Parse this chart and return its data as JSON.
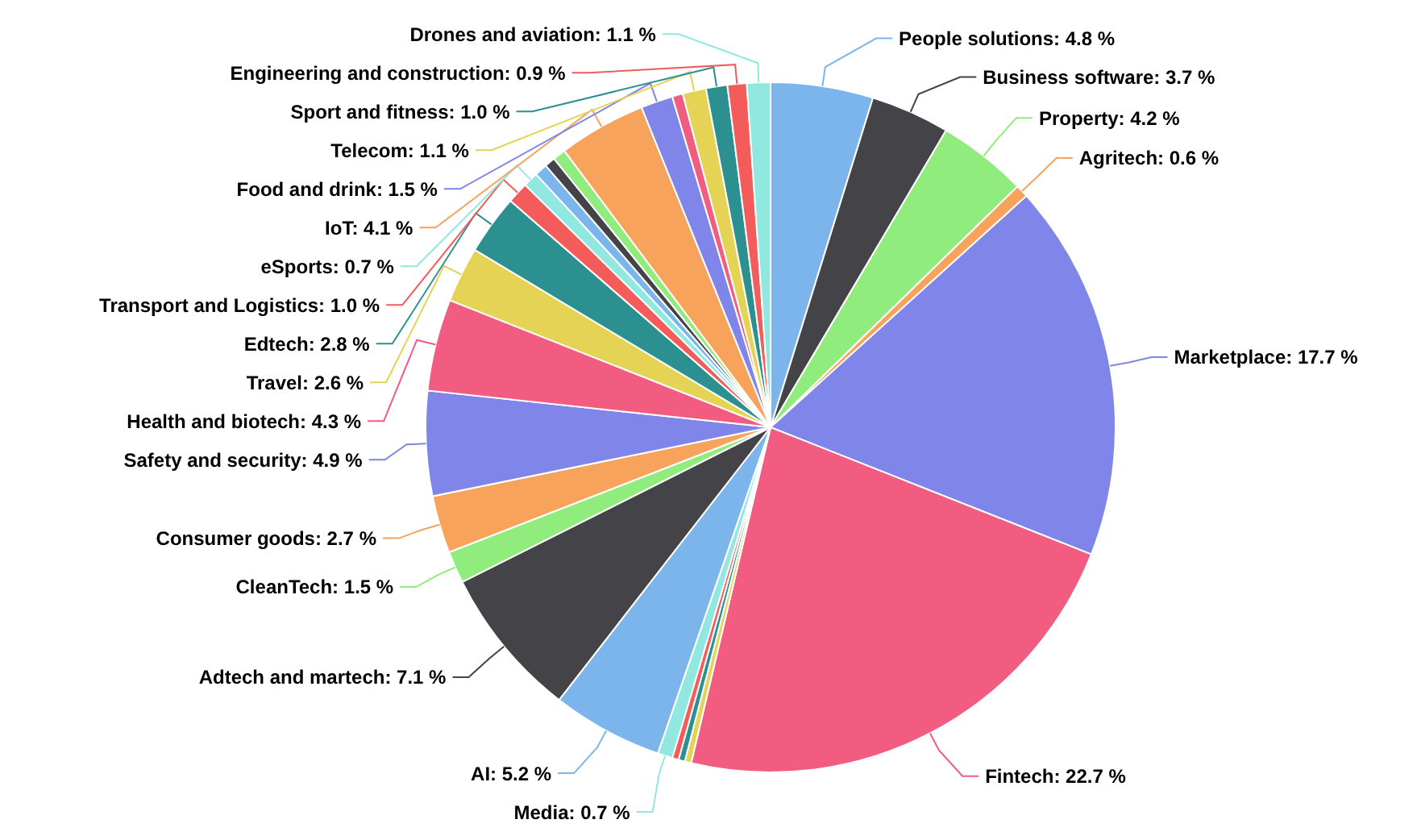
{
  "chart_data": {
    "type": "pie",
    "categories": [
      "People solutions",
      "Business software",
      "Property",
      "Agritech",
      "Marketplace",
      "Fintech",
      null,
      null,
      null,
      "Media",
      "AI",
      "Adtech and martech",
      "CleanTech",
      "Consumer goods",
      "Safety and security",
      "Health and biotech",
      "Travel",
      "Edtech",
      "Transport and Logistics",
      "eSports",
      null,
      null,
      null,
      "IoT",
      "Food and drink",
      null,
      "Telecom",
      "Sport and fitness",
      "Engineering and construction",
      "Drones and aviation"
    ],
    "values": [
      4.8,
      3.7,
      4.2,
      0.6,
      17.7,
      22.7,
      0.3,
      0.3,
      0.3,
      0.7,
      5.2,
      7.1,
      1.5,
      2.7,
      4.9,
      4.3,
      2.6,
      2.8,
      1.0,
      0.7,
      0.6,
      0.5,
      0.6,
      4.1,
      1.5,
      0.5,
      1.1,
      1.0,
      0.9,
      1.1
    ],
    "value_labels": [
      "4.8 %",
      "3.7 %",
      "4.2 %",
      "0.6 %",
      "17.7 %",
      "22.7 %",
      null,
      null,
      null,
      "0.7 %",
      "5.2 %",
      "7.1 %",
      "1.5 %",
      "2.7 %",
      "4.9 %",
      "4.3 %",
      "2.6 %",
      "2.8 %",
      "1.0 %",
      "0.7 %",
      null,
      null,
      null,
      "4.1 %",
      "1.5 %",
      null,
      "1.1 %",
      "1.0 %",
      "0.9 %",
      "1.1 %"
    ],
    "colors": [
      "#7cb5ec",
      "#434348",
      "#90ed7d",
      "#f7a35c",
      "#8085e9",
      "#f15c80",
      "#e4d354",
      "#2b908f",
      "#f45b5b",
      "#91e8e1",
      "#7cb5ec",
      "#434348",
      "#90ed7d",
      "#f7a35c",
      "#8085e9",
      "#f15c80",
      "#e4d354",
      "#2b908f",
      "#f45b5b",
      "#91e8e1",
      "#7cb5ec",
      "#434348",
      "#90ed7d",
      "#f7a35c",
      "#8085e9",
      "#f15c80",
      "#e4d354",
      "#2b908f",
      "#f45b5b",
      "#91e8e1"
    ]
  }
}
